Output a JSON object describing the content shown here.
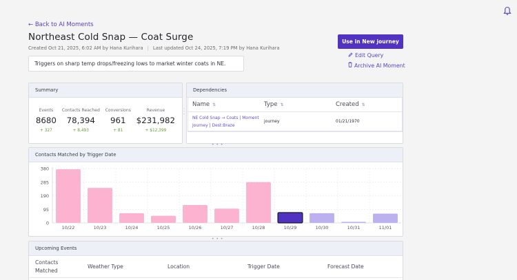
{
  "header": {
    "back_label": "← Back to AI Moments",
    "title": "Northeast Cold Snap — Coat Surge",
    "created": "Created Oct 21, 2025, 6:02 AM by Hana Kurihara",
    "updated": "Last updated Oct 24, 2025, 7:19 PM by Hana Kurihara",
    "meta_separator": "|",
    "description": "Triggers on sharp temp drops/freezing lows to market winter coats in NE."
  },
  "actions": {
    "primary_label": "Use in New journey",
    "edit_label": "Edit Query",
    "archive_label": "Archive AI Moment"
  },
  "icons": {
    "bell": "bell-icon",
    "edit": "pencil-icon",
    "archive": "trash-icon",
    "sort": "⇅"
  },
  "summary": {
    "title": "Summary",
    "stats": [
      {
        "label": "Events",
        "value": "8680",
        "delta": "+ 327"
      },
      {
        "label": "Contacts Reached",
        "value": "78,394",
        "delta": "+ 8,493"
      },
      {
        "label": "Conversions",
        "value": "961",
        "delta": "+ 81"
      },
      {
        "label": "Revenue",
        "value": "$231,982",
        "delta": "+ $12,399"
      }
    ]
  },
  "dependencies": {
    "title": "Dependencies",
    "columns": [
      "Name",
      "Type",
      "Created"
    ],
    "rows": [
      {
        "name_line1": "NE Cold Snap → Coats | Moment",
        "name_line2": "Journey | Dest:Braze",
        "type": "journey",
        "created": "01/21/1970"
      }
    ]
  },
  "chart_panel": {
    "title": "Contacts Matched by Trigger Date"
  },
  "chart_data": {
    "type": "bar",
    "title": "Contacts Matched by Trigger Date",
    "xlabel": "",
    "ylabel": "",
    "categories": [
      "10/22",
      "10/23",
      "10/24",
      "10/25",
      "10/26",
      "10/27",
      "10/28",
      "10/29",
      "10/30",
      "10/31",
      "11/01"
    ],
    "values": [
      375,
      245,
      68,
      50,
      125,
      100,
      285,
      72,
      68,
      5,
      65
    ],
    "states": [
      "past",
      "past",
      "past",
      "past",
      "past",
      "past",
      "past",
      "today",
      "forecast",
      "forecast",
      "forecast"
    ],
    "colors": {
      "past": "#fbb3d0",
      "today": "#5233c1",
      "forecast": "#bcb1ee",
      "today_border": "#1a1a24"
    },
    "yticks": [
      0,
      95,
      190,
      285,
      380
    ],
    "ylim": [
      0,
      380
    ],
    "grid": true
  },
  "upcoming": {
    "title": "Upcoming Events",
    "columns": [
      {
        "line1": "Contacts",
        "line2": "Matched"
      },
      {
        "line1": "Weather Type",
        "line2": ""
      },
      {
        "line1": "Location",
        "line2": ""
      },
      {
        "line1": "Trigger Date",
        "line2": ""
      },
      {
        "line1": "Forecast Date",
        "line2": ""
      }
    ]
  },
  "handles": {
    "horizontal": "• • •",
    "vertical": "⋮"
  }
}
